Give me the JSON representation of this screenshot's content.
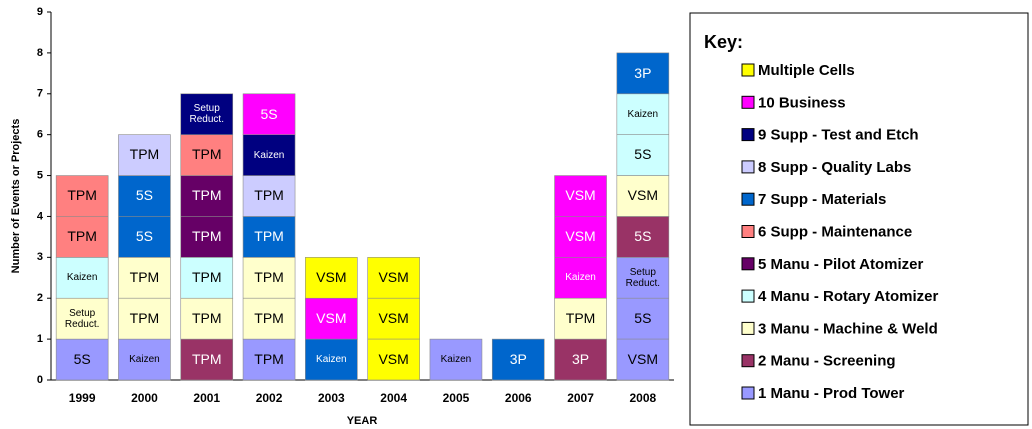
{
  "chart_data": {
    "type": "stacked-bar",
    "xlabel": "YEAR",
    "ylabel": "Number of Events or Projects",
    "legend_title": "Key:",
    "categories": [
      "1999",
      "2000",
      "2001",
      "2002",
      "2003",
      "2004",
      "2005",
      "2006",
      "2007",
      "2008"
    ],
    "ylim": [
      0,
      9
    ],
    "yticks": [
      0,
      1,
      2,
      3,
      4,
      5,
      6,
      7,
      8,
      9
    ],
    "series": [
      {
        "name": "1 Manu - Prod Tower",
        "color": "#9999ff",
        "values": [
          1,
          1,
          0,
          1,
          0,
          0,
          1,
          0,
          0,
          3
        ],
        "labels": [
          [
            "5S"
          ],
          [
            "Kaizen"
          ],
          [],
          [
            "TPM"
          ],
          [],
          [],
          [
            "Kaizen"
          ],
          [],
          [],
          [
            "VSM",
            "5S",
            "Setup Reduct."
          ]
        ]
      },
      {
        "name": "2 Manu - Screening",
        "color": "#993366",
        "values": [
          0,
          0,
          1,
          0,
          0,
          0,
          0,
          0,
          1,
          1
        ],
        "labels": [
          [],
          [],
          [
            "TPM"
          ],
          [],
          [],
          [],
          [],
          [],
          [
            "3P"
          ],
          [
            "5S"
          ]
        ]
      },
      {
        "name": "3 Manu - Machine & Weld",
        "color": "#ffffcc",
        "values": [
          1,
          2,
          1,
          2,
          0,
          0,
          0,
          0,
          1,
          1
        ],
        "labels": [
          [
            "Setup Reduct."
          ],
          [
            "TPM",
            "TPM"
          ],
          [
            "TPM"
          ],
          [
            "TPM",
            "TPM"
          ],
          [],
          [],
          [],
          [],
          [
            "TPM"
          ],
          [
            "VSM"
          ]
        ]
      },
      {
        "name": "4 Manu - Rotary Atomizer",
        "color": "#ccffff",
        "values": [
          1,
          0,
          1,
          0,
          0,
          0,
          0,
          0,
          0,
          2
        ],
        "labels": [
          [
            "Kaizen"
          ],
          [],
          [
            "TPM"
          ],
          [],
          [],
          [],
          [],
          [],
          [],
          [
            "5S",
            "Kaizen"
          ]
        ]
      },
      {
        "name": "5 Manu - Pilot Atomizer",
        "color": "#660066",
        "values": [
          0,
          0,
          2,
          0,
          0,
          0,
          0,
          0,
          0,
          0
        ],
        "labels": [
          [],
          [],
          [
            "TPM",
            "TPM"
          ],
          [],
          [],
          [],
          [],
          [],
          [],
          []
        ]
      },
      {
        "name": "6 Supp - Maintenance",
        "color": "#ff8080",
        "values": [
          2,
          0,
          1,
          0,
          0,
          0,
          0,
          0,
          0,
          0
        ],
        "labels": [
          [
            "TPM",
            "TPM"
          ],
          [],
          [
            "TPM"
          ],
          [],
          [],
          [],
          [],
          [],
          [],
          []
        ]
      },
      {
        "name": "7 Supp - Materials",
        "color": "#0066cc",
        "values": [
          0,
          2,
          0,
          1,
          1,
          0,
          0,
          1,
          0,
          1
        ],
        "labels": [
          [],
          [
            "5S",
            "5S"
          ],
          [],
          [
            "TPM"
          ],
          [
            "Kaizen"
          ],
          [],
          [],
          [
            "3P"
          ],
          [],
          [
            "3P"
          ]
        ]
      },
      {
        "name": "8 Supp - Quality Labs",
        "color": "#ccccff",
        "values": [
          0,
          1,
          0,
          1,
          0,
          0,
          0,
          0,
          0,
          0
        ],
        "labels": [
          [],
          [
            "TPM"
          ],
          [],
          [
            "TPM"
          ],
          [],
          [],
          [],
          [],
          [],
          []
        ]
      },
      {
        "name": "9 Supp - Test and Etch",
        "color": "#000080",
        "values": [
          0,
          0,
          1,
          1,
          0,
          0,
          0,
          0,
          0,
          0
        ],
        "labels": [
          [],
          [],
          [
            "Setup Reduct."
          ],
          [
            "Kaizen"
          ],
          [],
          [],
          [],
          [],
          [],
          []
        ]
      },
      {
        "name": "10 Business",
        "color": "#ff00ff",
        "values": [
          0,
          0,
          0,
          1,
          1,
          0,
          0,
          0,
          3,
          0
        ],
        "labels": [
          [],
          [],
          [],
          [
            "5S"
          ],
          [
            "VSM"
          ],
          [],
          [],
          [],
          [
            "Kaizen",
            "VSM",
            "VSM"
          ],
          []
        ]
      },
      {
        "name": "Multiple Cells",
        "color": "#ffff00",
        "values": [
          0,
          0,
          0,
          0,
          1,
          3,
          0,
          0,
          0,
          0
        ],
        "labels": [
          [],
          [],
          [],
          [],
          [
            "VSM"
          ],
          [
            "VSM",
            "VSM",
            "VSM"
          ],
          [],
          [],
          [],
          []
        ]
      }
    ]
  }
}
